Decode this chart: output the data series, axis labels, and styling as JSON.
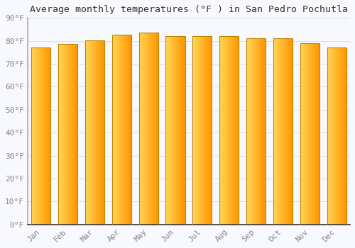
{
  "title": "Average monthly temperatures (°F ) in San Pedro Pochutla",
  "months": [
    "Jan",
    "Feb",
    "Mar",
    "Apr",
    "May",
    "Jun",
    "Jul",
    "Aug",
    "Sep",
    "Oct",
    "Nov",
    "Dec"
  ],
  "values": [
    77.2,
    78.6,
    80.2,
    82.6,
    83.5,
    82.1,
    82.1,
    82.0,
    81.1,
    81.0,
    79.0,
    77.2
  ],
  "bar_color_left": "#FFD060",
  "bar_color_right": "#FFA000",
  "bar_color_mid": "#FFBB30",
  "bar_edge_color": "#CC8800",
  "background_color": "#F8F8FF",
  "grid_color": "#DDDDEE",
  "ylim": [
    0,
    90
  ],
  "yticks": [
    0,
    10,
    20,
    30,
    40,
    50,
    60,
    70,
    80,
    90
  ],
  "ytick_labels": [
    "0°F",
    "10°F",
    "20°F",
    "30°F",
    "40°F",
    "50°F",
    "60°F",
    "70°F",
    "80°F",
    "90°F"
  ],
  "title_fontsize": 9.5,
  "tick_fontsize": 8,
  "font_family": "monospace"
}
